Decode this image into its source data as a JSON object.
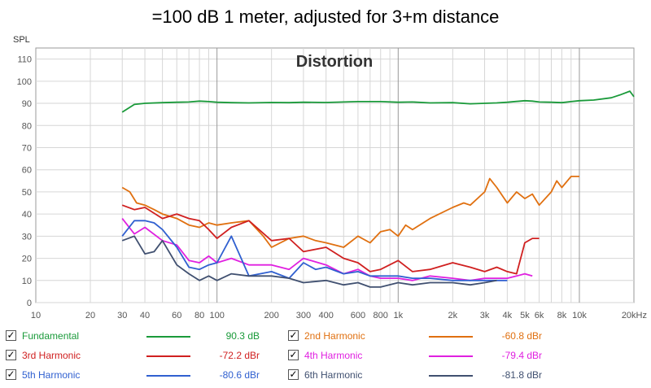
{
  "title": "=100 dB 1 meter, adjusted for 3+m distance",
  "chart_data": {
    "type": "line",
    "title": "Distortion",
    "ylabel": "SPL",
    "xlabel": "",
    "x_scale": "log",
    "xlim": [
      10,
      20000
    ],
    "ylim": [
      0,
      115
    ],
    "grid": true,
    "y_ticks": [
      "0",
      "10",
      "20",
      "30",
      "40",
      "50",
      "60",
      "70",
      "80",
      "90",
      "100",
      "110"
    ],
    "x_ticks": [
      {
        "v": 10,
        "label": "10"
      },
      {
        "v": 20,
        "label": "20"
      },
      {
        "v": 30,
        "label": "30"
      },
      {
        "v": 40,
        "label": "40"
      },
      {
        "v": 60,
        "label": "60"
      },
      {
        "v": 80,
        "label": "80"
      },
      {
        "v": 100,
        "label": "100"
      },
      {
        "v": 200,
        "label": "200"
      },
      {
        "v": 300,
        "label": "300"
      },
      {
        "v": 400,
        "label": "400"
      },
      {
        "v": 600,
        "label": "600"
      },
      {
        "v": 800,
        "label": "800"
      },
      {
        "v": 1000,
        "label": "1k"
      },
      {
        "v": 2000,
        "label": "2k"
      },
      {
        "v": 3000,
        "label": "3k"
      },
      {
        "v": 4000,
        "label": "4k"
      },
      {
        "v": 5000,
        "label": "5k"
      },
      {
        "v": 6000,
        "label": "6k"
      },
      {
        "v": 8000,
        "label": "8k"
      },
      {
        "v": 10000,
        "label": "10k"
      },
      {
        "v": 20000,
        "label": "20kHz"
      }
    ],
    "series": [
      {
        "name": "Fundamental",
        "color": "#1a9a3a",
        "value": "90.3 dB",
        "x": [
          30,
          35,
          40,
          50,
          60,
          70,
          80,
          90,
          100,
          120,
          150,
          200,
          250,
          300,
          400,
          500,
          600,
          800,
          1000,
          1200,
          1500,
          2000,
          2500,
          3000,
          3500,
          4000,
          5000,
          5500,
          6000,
          7000,
          8000,
          9000,
          10000,
          12000,
          15000,
          17000,
          19000,
          20000
        ],
        "y": [
          86,
          89.5,
          90,
          90.3,
          90.5,
          90.6,
          91,
          90.8,
          90.5,
          90.3,
          90.2,
          90.4,
          90.3,
          90.5,
          90.4,
          90.6,
          90.8,
          90.8,
          90.5,
          90.6,
          90.2,
          90.3,
          89.8,
          90,
          90.2,
          90.5,
          91.2,
          91,
          90.6,
          90.5,
          90.3,
          90.8,
          91.2,
          91.5,
          92.5,
          94,
          95.5,
          93
        ]
      },
      {
        "name": "2nd Harmonic",
        "color": "#e07010",
        "value": "-60.8 dBr",
        "x": [
          30,
          33,
          36,
          40,
          45,
          50,
          60,
          70,
          80,
          90,
          100,
          120,
          150,
          180,
          200,
          250,
          300,
          350,
          400,
          500,
          600,
          700,
          800,
          900,
          1000,
          1100,
          1200,
          1500,
          2000,
          2300,
          2500,
          3000,
          3200,
          3500,
          4000,
          4500,
          5000,
          5500,
          6000,
          7000,
          7500,
          8000,
          9000,
          10000
        ],
        "y": [
          52,
          50,
          45,
          44,
          42,
          40,
          38,
          35,
          34,
          36,
          35,
          36,
          37,
          30,
          25,
          29,
          30,
          28,
          27,
          25,
          30,
          27,
          32,
          33,
          30,
          35,
          33,
          38,
          43,
          45,
          44,
          50,
          56,
          52,
          45,
          50,
          47,
          49,
          44,
          50,
          55,
          52,
          57,
          57
        ]
      },
      {
        "name": "3rd Harmonic",
        "color": "#d02020",
        "value": "-72.2 dBr",
        "x": [
          30,
          35,
          40,
          50,
          60,
          70,
          80,
          90,
          100,
          120,
          150,
          200,
          250,
          300,
          400,
          500,
          600,
          700,
          800,
          1000,
          1200,
          1500,
          2000,
          2500,
          3000,
          3500,
          4000,
          4500,
          5000,
          5500,
          6000
        ],
        "y": [
          44,
          42,
          43,
          38,
          40,
          38,
          37,
          33,
          29,
          34,
          37,
          28,
          29,
          23,
          25,
          20,
          18,
          14,
          15,
          19,
          14,
          15,
          18,
          16,
          14,
          16,
          14,
          13,
          27,
          29,
          29
        ]
      },
      {
        "name": "4th Harmonic",
        "color": "#e020e0",
        "value": "-79.4 dBr",
        "x": [
          30,
          35,
          40,
          50,
          60,
          70,
          80,
          90,
          100,
          120,
          150,
          200,
          250,
          300,
          400,
          500,
          600,
          700,
          800,
          1000,
          1200,
          1500,
          2000,
          2500,
          3000,
          3500,
          4000,
          4500,
          5000,
          5500
        ],
        "y": [
          38,
          31,
          34,
          28,
          26,
          19,
          18,
          21,
          18,
          20,
          17,
          17,
          15,
          20,
          17,
          13,
          15,
          12,
          11,
          11,
          10,
          12,
          11,
          10,
          11,
          11,
          11,
          12,
          13,
          12
        ]
      },
      {
        "name": "5th Harmonic",
        "color": "#3060d0",
        "value": "-80.6 dBr",
        "x": [
          30,
          35,
          40,
          45,
          50,
          60,
          70,
          80,
          90,
          100,
          120,
          150,
          200,
          250,
          300,
          350,
          400,
          500,
          600,
          700,
          800,
          1000,
          1200,
          1500,
          2000,
          2500,
          3000,
          3500,
          4000
        ],
        "y": [
          30,
          37,
          37,
          36,
          33,
          25,
          16,
          15,
          17,
          18,
          30,
          12,
          14,
          11,
          18,
          15,
          16,
          13,
          14,
          12,
          12,
          12,
          11,
          11,
          10,
          10,
          10,
          10,
          10
        ]
      },
      {
        "name": "6th Harmonic",
        "color": "#405070",
        "value": "-81.8 dBr",
        "x": [
          30,
          35,
          40,
          45,
          50,
          60,
          70,
          80,
          90,
          100,
          120,
          150,
          200,
          250,
          300,
          400,
          500,
          600,
          700,
          800,
          1000,
          1200,
          1500,
          2000,
          2500,
          3000,
          3500
        ],
        "y": [
          28,
          30,
          22,
          23,
          28,
          17,
          13,
          10,
          12,
          10,
          13,
          12,
          12,
          11,
          9,
          10,
          8,
          9,
          7,
          7,
          9,
          8,
          9,
          9,
          8,
          9,
          10
        ]
      }
    ]
  },
  "legend": [
    {
      "label": "Fundamental",
      "color": "#1a9a3a",
      "value": "90.3 dB",
      "checked": true
    },
    {
      "label": "2nd Harmonic",
      "color": "#e07010",
      "value": "-60.8 dBr",
      "checked": true
    },
    {
      "label": "3rd Harmonic",
      "color": "#d02020",
      "value": "-72.2 dBr",
      "checked": true
    },
    {
      "label": "4th Harmonic",
      "color": "#e020e0",
      "value": "-79.4 dBr",
      "checked": true
    },
    {
      "label": "5th Harmonic",
      "color": "#3060d0",
      "value": "-80.6 dBr",
      "checked": true
    },
    {
      "label": "6th Harmonic",
      "color": "#405070",
      "value": "-81.8 dBr",
      "checked": true
    }
  ]
}
